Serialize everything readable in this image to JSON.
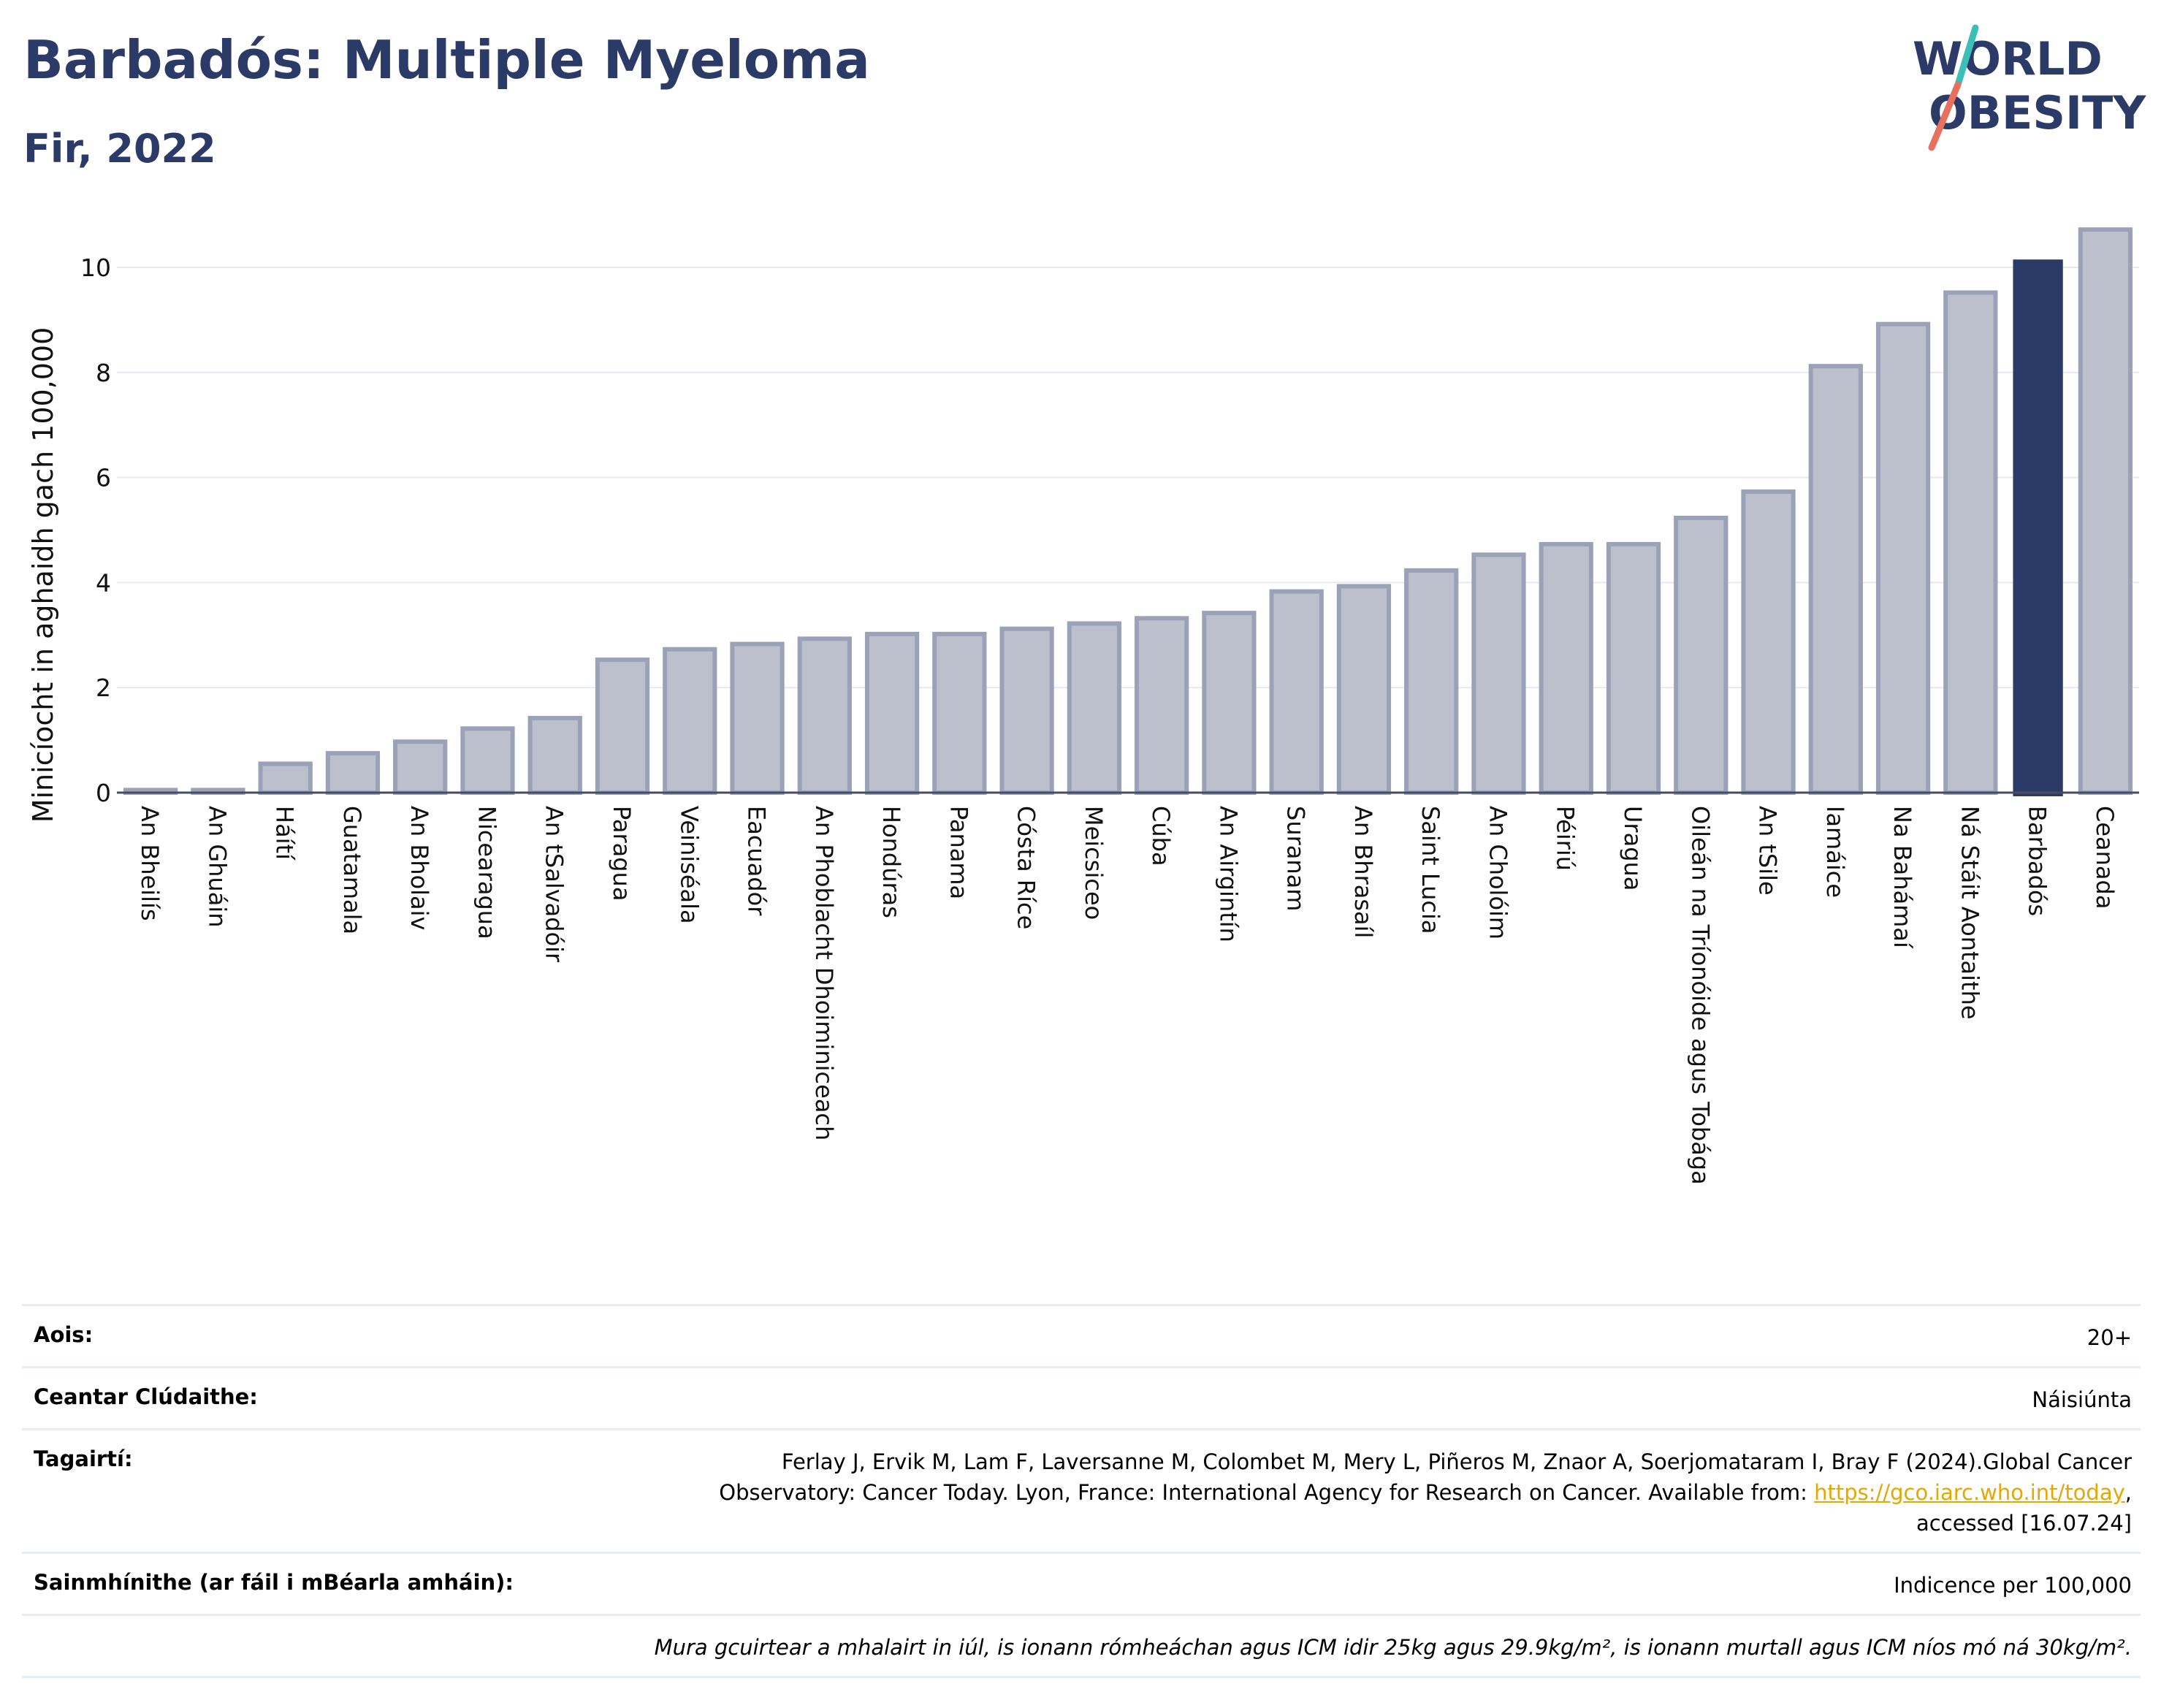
{
  "header": {
    "title": "Barbadós: Multiple Myeloma",
    "subtitle": "Fir, 2022",
    "logo_line1": "WORLD",
    "logo_line2": "OBESITY"
  },
  "colors": {
    "highlight": "#2b3a67",
    "bar_fill": "#bcc0cd",
    "bar_stroke": "#9ba2b8",
    "title": "#2b3a67",
    "link": "#e6a800"
  },
  "chart_data": {
    "type": "bar",
    "title": "Barbadós: Multiple Myeloma",
    "subtitle": "Fir, 2022",
    "ylabel": "Minicíocht in aghaidh gach 100,000",
    "xlabel": "",
    "ylim": [
      0,
      11
    ],
    "yticks": [
      0,
      2,
      4,
      6,
      8,
      10
    ],
    "grid": true,
    "highlight": "Barbadós",
    "categories": [
      "An Bheilís",
      "An Ghuáin",
      "Háítí",
      "Guatamala",
      "An Bholaiv",
      "Nicearagua",
      "An tSalvadóir",
      "Paragua",
      "Veiniséala",
      "Eacuadór",
      "An Phoblacht Dhoiminiceach",
      "Hondúras",
      "Panama",
      "Cósta Ríce",
      "Meicsiceo",
      "Cúba",
      "An Airgintín",
      "Suranam",
      "An Bhrasaíl",
      "Saint Lucia",
      "An Cholóim",
      "Péiriú",
      "Uragua",
      "Oileán na Tríonóide agus Tobága",
      "An tSile",
      "Iamáice",
      "Na Bahámaí",
      "Ná Stáit Aontaithe",
      "Barbadós",
      "Ceanada"
    ],
    "values": [
      0.05,
      0.05,
      0.55,
      0.75,
      0.97,
      1.22,
      1.42,
      2.53,
      2.73,
      2.83,
      2.93,
      3.02,
      3.02,
      3.12,
      3.22,
      3.32,
      3.42,
      3.83,
      3.93,
      4.23,
      4.53,
      4.73,
      4.73,
      5.23,
      5.73,
      8.12,
      8.92,
      9.52,
      10.15,
      10.72
    ]
  },
  "info": {
    "age_label": "Aois:",
    "age_value": "20+",
    "coverage_label": "Ceantar Clúdaithe:",
    "coverage_value": "Náisiúnta",
    "references_label": "Tagairtí:",
    "references_text_1": "Ferlay J, Ervik M, Lam F, Laversanne M, Colombet M, Mery L, Piñeros M, Znaor A, Soerjomataram I, Bray F (2024).Global Cancer",
    "references_text_2": "Observatory: Cancer Today. Lyon, France: International Agency for Research on Cancer. Available from: ",
    "references_link": "https://gco.iarc.who.int/today",
    "references_text_3": ",",
    "references_text_4": "accessed [16.07.24]",
    "definitions_label": "Sainmhínithe (ar fáil i mBéarla amháin):",
    "definitions_value": "Indicence per 100,000",
    "note": "Mura gcuirtear a mhalairt in iúl, is ionann rómheáchan agus ICM idir 25kg agus 29.9kg/m², is ionann murtall agus ICM níos mó ná 30kg/m²."
  }
}
